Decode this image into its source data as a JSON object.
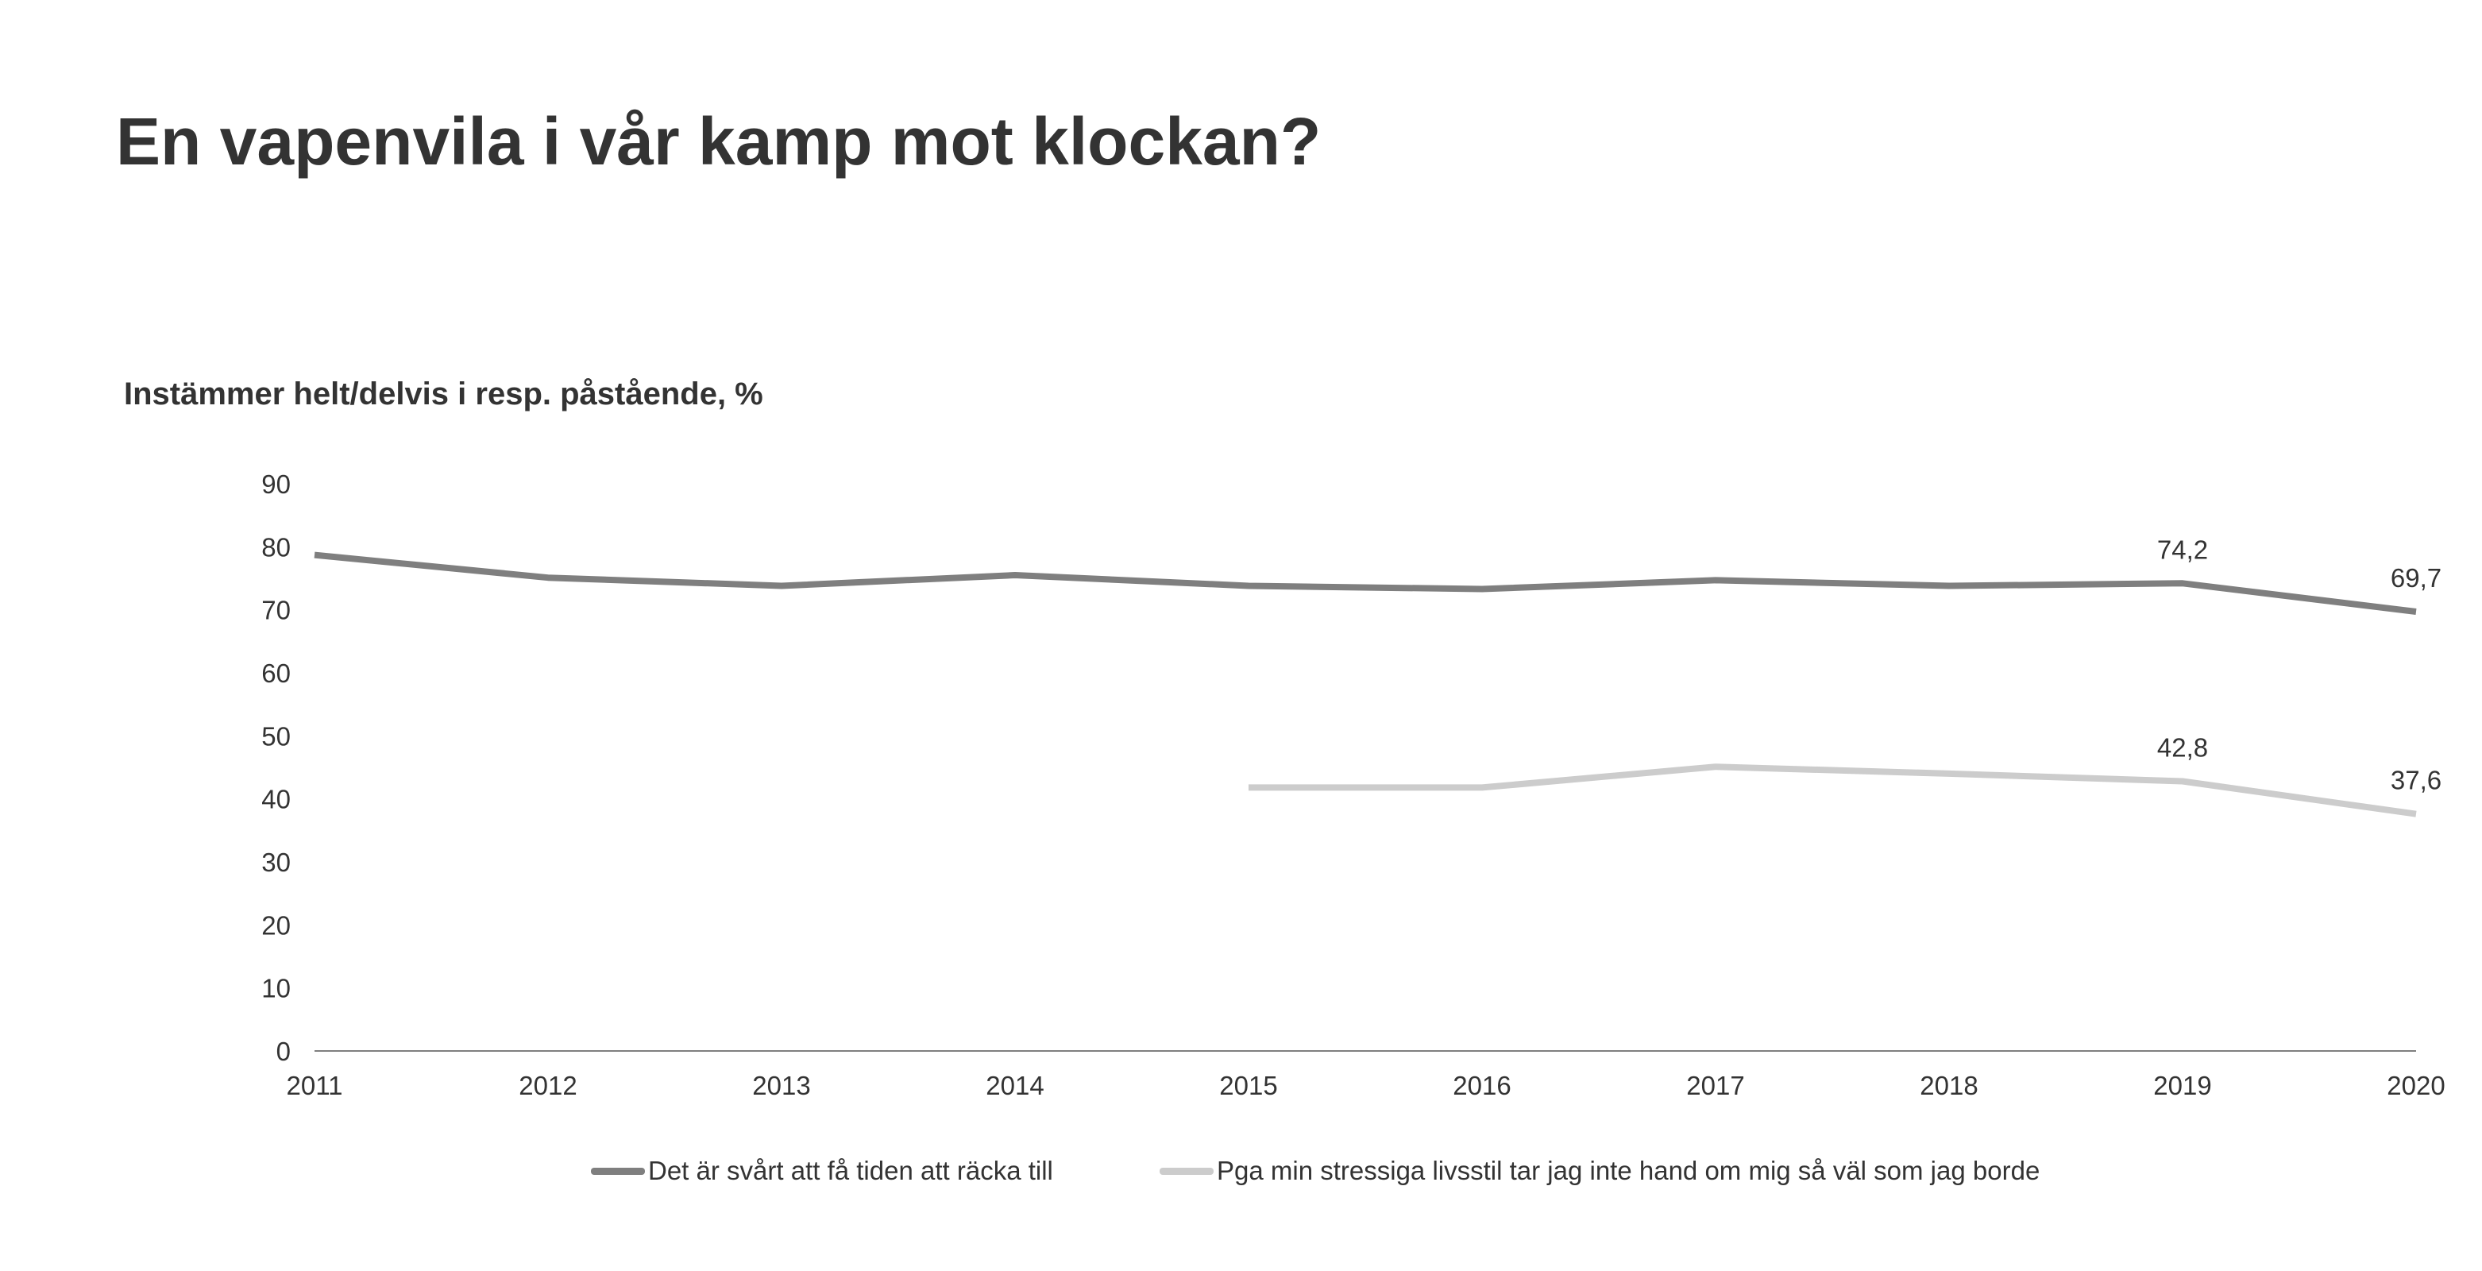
{
  "title": "En vapenvila i vår kamp mot klockan?",
  "chart_data": {
    "type": "line",
    "title": "En vapenvila i vår kamp mot klockan?",
    "subtitle": "Instämmer helt/delvis i resp. påstående, %",
    "x": [
      "2011",
      "2012",
      "2013",
      "2014",
      "2015",
      "2016",
      "2017",
      "2018",
      "2019",
      "2020"
    ],
    "y_ticks": [
      "0",
      "10",
      "20",
      "30",
      "40",
      "50",
      "60",
      "70",
      "80",
      "90"
    ],
    "ylim": [
      0,
      90
    ],
    "grid": false,
    "legend_position": "bottom",
    "series": [
      {
        "name": "Det är svårt att få tiden att räcka till",
        "color": "#7f7f7f",
        "values": [
          78.7,
          75.1,
          73.8,
          75.5,
          73.8,
          73.3,
          74.7,
          73.8,
          74.2,
          69.7
        ],
        "data_labels": [
          {
            "x": "2019",
            "text": "74,2"
          },
          {
            "x": "2020",
            "text": "69,7"
          }
        ]
      },
      {
        "name": "Pga min stressiga livsstil tar jag inte hand om mig så väl som jag borde",
        "color": "#cccccc",
        "values": [
          null,
          null,
          null,
          null,
          41.8,
          41.8,
          45.1,
          44.0,
          42.8,
          37.6
        ],
        "data_labels": [
          {
            "x": "2019",
            "text": "42,8"
          },
          {
            "x": "2020",
            "text": "37,6"
          }
        ]
      }
    ]
  }
}
